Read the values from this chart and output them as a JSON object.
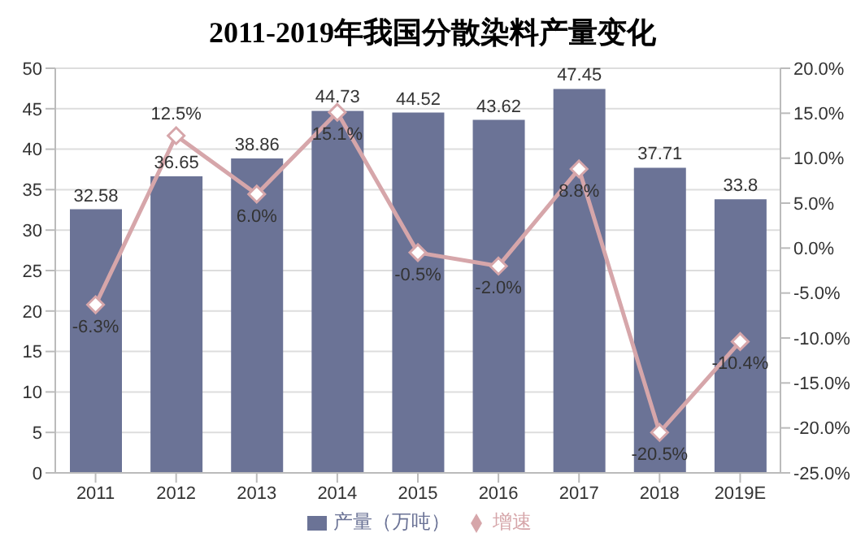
{
  "chart_data": {
    "type": "bar",
    "title": "2011-2019年我国分散染料产量变化",
    "categories": [
      "2011",
      "2012",
      "2013",
      "2014",
      "2015",
      "2016",
      "2017",
      "2018",
      "2019E"
    ],
    "series": [
      {
        "name": "产量（万吨）",
        "color": "#6b7396",
        "values": [
          32.58,
          36.65,
          38.86,
          44.73,
          44.52,
          43.62,
          47.45,
          37.71,
          33.8
        ],
        "value_labels": [
          "32.58",
          "36.65",
          "38.86",
          "44.73",
          "44.52",
          "43.62",
          "47.45",
          "37.71",
          "33.8"
        ]
      },
      {
        "name": "增速",
        "type": "line",
        "axis": "y2",
        "color": "#d6a6aa",
        "marker": "diamond",
        "values": [
          -6.3,
          12.5,
          6.0,
          15.1,
          -0.5,
          -2.0,
          8.8,
          -20.5,
          -10.4
        ],
        "value_labels": [
          "-6.3%",
          "12.5%",
          "6.0%",
          "15.1%",
          "-0.5%",
          "-2.0%",
          "8.8%",
          "-20.5%",
          "-10.4%"
        ]
      }
    ],
    "ylim": [
      0,
      50
    ],
    "yticks": [
      0,
      5,
      10,
      15,
      20,
      25,
      30,
      35,
      40,
      45,
      50
    ],
    "y2lim": [
      -25,
      20
    ],
    "y2ticks": [
      {
        "value": -25,
        "label": "-25.0%"
      },
      {
        "value": -20,
        "label": "-20.0%"
      },
      {
        "value": -15,
        "label": "-15.0%"
      },
      {
        "value": -10,
        "label": "-10.0%"
      },
      {
        "value": -5,
        "label": "-5.0%"
      },
      {
        "value": 0,
        "label": "0.0%"
      },
      {
        "value": 5,
        "label": "5.0%"
      },
      {
        "value": 10,
        "label": "10.0%"
      },
      {
        "value": 15,
        "label": "15.0%"
      },
      {
        "value": 20,
        "label": "20.0%"
      }
    ],
    "grid": "y",
    "legend": "bottom"
  }
}
